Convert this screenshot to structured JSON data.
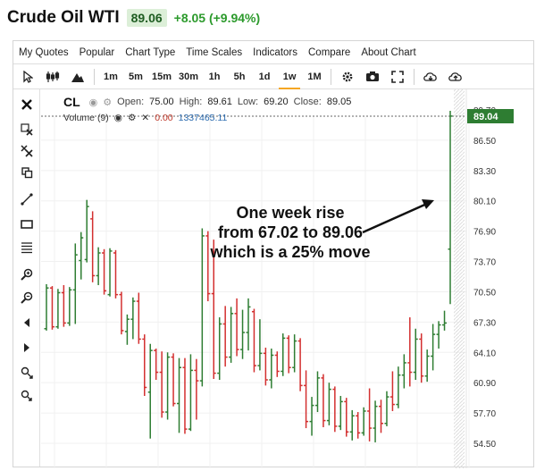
{
  "header": {
    "title": "Crude Oil WTI",
    "price": "89.06",
    "change": "+8.05 (+9.94%)"
  },
  "menu": [
    "My Quotes",
    "Popular",
    "Chart Type",
    "Time Scales",
    "Indicators",
    "Compare",
    "About Chart"
  ],
  "toolbar": {
    "intervals": [
      "1m",
      "5m",
      "15m",
      "30m",
      "1h",
      "5h",
      "1d",
      "1w",
      "1M"
    ],
    "active_interval": "1w",
    "icons": [
      "cursor-icon",
      "candles-icon",
      "mountain-icon",
      "gear-icon",
      "camera-icon",
      "fullscreen-icon",
      "cloud-download-icon",
      "cloud-upload-icon"
    ]
  },
  "side_tools": [
    "close-icon",
    "delete-drawing-icon",
    "remove-all-icon",
    "copy-icon",
    "trendline-icon",
    "rectangle-icon",
    "fibonacci-icon",
    "zoom-in-icon",
    "zoom-out-icon",
    "scroll-left-icon",
    "scroll-right-icon",
    "expand-icon",
    "shrink-icon"
  ],
  "legend": {
    "symbol": "CL",
    "open_label": "Open:",
    "open": "75.00",
    "high_label": "High:",
    "high": "89.61",
    "low_label": "Low:",
    "low": "69.20",
    "close_label": "Close:",
    "close": "89.05"
  },
  "volume_legend": {
    "label": "Volume (9)",
    "value_red": "0.00",
    "value_blue": "1337465.11"
  },
  "annotation": {
    "line1": "One week rise",
    "line2": "from 67.02 to 89.06",
    "line3": "which is a 25% move"
  },
  "chart_data": {
    "type": "ohlc",
    "symbol": "CL",
    "yticks": [
      89.7,
      86.5,
      83.3,
      80.1,
      76.9,
      73.7,
      70.5,
      67.3,
      64.1,
      60.9,
      57.7,
      54.5
    ],
    "ylim": [
      53.0,
      91.0
    ],
    "price_label": "89.04",
    "colors": {
      "up": "#2e7d32",
      "down": "#d32f2f",
      "price_label_bg": "#2e7d32"
    },
    "bars": [
      {
        "o": 66.6,
        "h": 71.3,
        "l": 66.4,
        "c": 70.9
      },
      {
        "o": 70.9,
        "h": 71.1,
        "l": 66.5,
        "c": 66.8
      },
      {
        "o": 66.8,
        "h": 70.8,
        "l": 66.6,
        "c": 70.4
      },
      {
        "o": 70.4,
        "h": 71.2,
        "l": 66.8,
        "c": 67.2
      },
      {
        "o": 67.2,
        "h": 71.0,
        "l": 66.9,
        "c": 70.7
      },
      {
        "o": 70.7,
        "h": 75.6,
        "l": 67.1,
        "c": 74.4
      },
      {
        "o": 73.8,
        "h": 76.8,
        "l": 71.8,
        "c": 76.2
      },
      {
        "o": 73.9,
        "h": 80.2,
        "l": 73.6,
        "c": 79.5
      },
      {
        "o": 78.2,
        "h": 79.0,
        "l": 71.5,
        "c": 72.2
      },
      {
        "o": 72.2,
        "h": 75.2,
        "l": 71.2,
        "c": 74.6
      },
      {
        "o": 74.6,
        "h": 75.0,
        "l": 70.2,
        "c": 70.6
      },
      {
        "o": 70.2,
        "h": 75.1,
        "l": 70.0,
        "c": 74.8
      },
      {
        "o": 74.6,
        "h": 74.9,
        "l": 69.8,
        "c": 70.2
      },
      {
        "o": 70.2,
        "h": 70.5,
        "l": 66.0,
        "c": 66.4
      },
      {
        "o": 66.3,
        "h": 68.1,
        "l": 64.9,
        "c": 67.6
      },
      {
        "o": 67.6,
        "h": 69.9,
        "l": 65.5,
        "c": 69.5
      },
      {
        "o": 69.5,
        "h": 70.4,
        "l": 65.0,
        "c": 65.5
      },
      {
        "o": 65.5,
        "h": 66.0,
        "l": 59.5,
        "c": 60.4
      },
      {
        "o": 59.9,
        "h": 65.0,
        "l": 55.0,
        "c": 64.3
      },
      {
        "o": 64.3,
        "h": 64.5,
        "l": 61.2,
        "c": 62.0
      },
      {
        "o": 62.0,
        "h": 64.2,
        "l": 57.2,
        "c": 57.8
      },
      {
        "o": 57.8,
        "h": 64.1,
        "l": 57.0,
        "c": 63.6
      },
      {
        "o": 63.6,
        "h": 64.0,
        "l": 58.4,
        "c": 58.7
      },
      {
        "o": 58.7,
        "h": 63.5,
        "l": 55.6,
        "c": 62.5
      },
      {
        "o": 62.5,
        "h": 63.5,
        "l": 55.5,
        "c": 56.0
      },
      {
        "o": 56.0,
        "h": 63.9,
        "l": 55.8,
        "c": 62.2
      },
      {
        "o": 62.2,
        "h": 63.4,
        "l": 57.0,
        "c": 61.1
      },
      {
        "o": 61.1,
        "h": 77.2,
        "l": 60.5,
        "c": 76.4
      },
      {
        "o": 76.4,
        "h": 76.9,
        "l": 69.5,
        "c": 70.3
      },
      {
        "o": 70.3,
        "h": 76.0,
        "l": 61.3,
        "c": 61.9
      },
      {
        "o": 61.9,
        "h": 67.8,
        "l": 61.2,
        "c": 67.1
      },
      {
        "o": 67.1,
        "h": 69.0,
        "l": 62.6,
        "c": 63.6
      },
      {
        "o": 63.6,
        "h": 68.9,
        "l": 63.0,
        "c": 68.2
      },
      {
        "o": 68.2,
        "h": 69.8,
        "l": 63.7,
        "c": 64.4
      },
      {
        "o": 64.4,
        "h": 68.6,
        "l": 63.4,
        "c": 66.2
      },
      {
        "o": 66.2,
        "h": 69.8,
        "l": 64.3,
        "c": 68.9
      },
      {
        "o": 68.4,
        "h": 68.7,
        "l": 62.0,
        "c": 62.7
      },
      {
        "o": 62.7,
        "h": 67.6,
        "l": 62.2,
        "c": 64.0
      },
      {
        "o": 64.0,
        "h": 64.6,
        "l": 60.6,
        "c": 61.2
      },
      {
        "o": 61.2,
        "h": 64.5,
        "l": 60.3,
        "c": 63.8
      },
      {
        "o": 63.8,
        "h": 64.2,
        "l": 61.5,
        "c": 62.1
      },
      {
        "o": 62.1,
        "h": 66.1,
        "l": 61.6,
        "c": 65.6
      },
      {
        "o": 65.6,
        "h": 65.9,
        "l": 61.9,
        "c": 62.5
      },
      {
        "o": 62.5,
        "h": 66.0,
        "l": 62.0,
        "c": 65.3
      },
      {
        "o": 65.3,
        "h": 65.6,
        "l": 60.0,
        "c": 60.6
      },
      {
        "o": 60.6,
        "h": 62.2,
        "l": 56.1,
        "c": 56.8
      },
      {
        "o": 56.8,
        "h": 59.4,
        "l": 55.3,
        "c": 58.5
      },
      {
        "o": 58.5,
        "h": 62.1,
        "l": 57.8,
        "c": 61.4
      },
      {
        "o": 61.4,
        "h": 61.8,
        "l": 56.2,
        "c": 56.9
      },
      {
        "o": 56.9,
        "h": 60.9,
        "l": 56.4,
        "c": 60.2
      },
      {
        "o": 60.2,
        "h": 60.5,
        "l": 55.7,
        "c": 56.3
      },
      {
        "o": 56.3,
        "h": 59.5,
        "l": 55.9,
        "c": 58.9
      },
      {
        "o": 58.9,
        "h": 59.3,
        "l": 55.2,
        "c": 55.7
      },
      {
        "o": 55.7,
        "h": 58.0,
        "l": 54.8,
        "c": 57.4
      },
      {
        "o": 57.4,
        "h": 57.8,
        "l": 55.0,
        "c": 55.6
      },
      {
        "o": 55.6,
        "h": 58.3,
        "l": 55.3,
        "c": 57.9
      },
      {
        "o": 57.9,
        "h": 60.3,
        "l": 54.7,
        "c": 56.1
      },
      {
        "o": 56.1,
        "h": 59.0,
        "l": 54.6,
        "c": 58.4
      },
      {
        "o": 58.4,
        "h": 59.1,
        "l": 55.6,
        "c": 56.6
      },
      {
        "o": 56.6,
        "h": 60.0,
        "l": 56.3,
        "c": 59.4
      },
      {
        "o": 59.4,
        "h": 62.1,
        "l": 57.9,
        "c": 58.6
      },
      {
        "o": 58.6,
        "h": 62.6,
        "l": 58.2,
        "c": 61.7
      },
      {
        "o": 61.7,
        "h": 63.9,
        "l": 60.3,
        "c": 63.0
      },
      {
        "o": 63.0,
        "h": 67.8,
        "l": 60.5,
        "c": 62.0
      },
      {
        "o": 62.0,
        "h": 66.6,
        "l": 61.2,
        "c": 65.5
      },
      {
        "o": 65.5,
        "h": 66.1,
        "l": 60.9,
        "c": 61.6
      },
      {
        "o": 61.6,
        "h": 64.4,
        "l": 61.0,
        "c": 63.7
      },
      {
        "o": 63.7,
        "h": 67.1,
        "l": 62.2,
        "c": 66.0
      },
      {
        "o": 66.0,
        "h": 67.4,
        "l": 64.5,
        "c": 67.0
      },
      {
        "o": 67.0,
        "h": 68.5,
        "l": 66.4,
        "c": 67.2
      },
      {
        "o": 75.0,
        "h": 89.61,
        "l": 69.2,
        "c": 89.05
      }
    ]
  }
}
